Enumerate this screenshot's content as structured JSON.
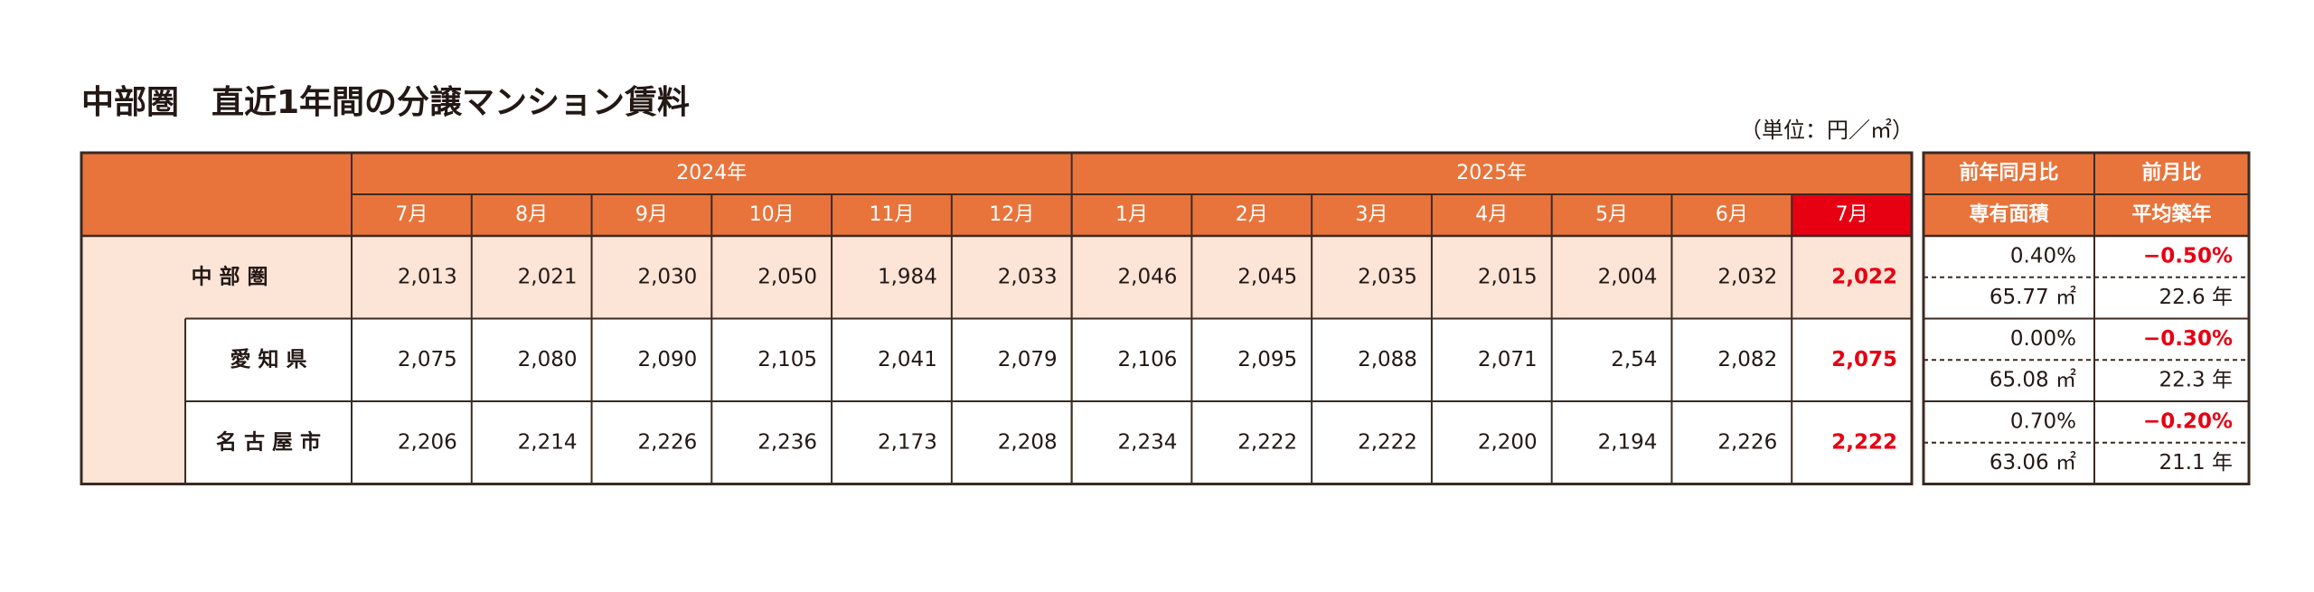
{
  "title": "中部圏　直近1年間の分譲マンション賃料",
  "unit": "（単位：円／㎡）",
  "table": {
    "years": [
      "2024年",
      "2025年"
    ],
    "months": [
      "7月",
      "8月",
      "9月",
      "10月",
      "11月",
      "12月",
      "1月",
      "2月",
      "3月",
      "4月",
      "5月",
      "6月",
      "7月"
    ],
    "side_headers": [
      "前年同月比",
      "前月比",
      "専有面積",
      "平均築年"
    ],
    "rows": [
      {
        "name": "中 部 圏",
        "values": [
          "2,013",
          "2,021",
          "2,030",
          "2,050",
          "1,984",
          "2,033",
          "2,046",
          "2,045",
          "2,035",
          "2,015",
          "2,004",
          "2,032",
          "2,022"
        ],
        "yoy": "0.40%",
        "mom": "−0.50%",
        "area": "65.77 ㎡",
        "age": "22.6 年"
      },
      {
        "name": "愛 知 県",
        "values": [
          "2,075",
          "2,080",
          "2,090",
          "2,105",
          "2,041",
          "2,079",
          "2,106",
          "2,095",
          "2,088",
          "2,071",
          "2,54",
          "2,082",
          "2,075"
        ],
        "yoy": "0.00%",
        "mom": "−0.30%",
        "area": "65.08 ㎡",
        "age": "22.3 年"
      },
      {
        "name": "名 古 屋 市",
        "values": [
          "2,206",
          "2,214",
          "2,226",
          "2,236",
          "2,173",
          "2,208",
          "2,234",
          "2,222",
          "2,222",
          "2,200",
          "2,194",
          "2,226",
          "2,222"
        ],
        "yoy": "0.70%",
        "mom": "−0.20%",
        "area": "63.06 ㎡",
        "age": "21.1 年"
      }
    ]
  }
}
